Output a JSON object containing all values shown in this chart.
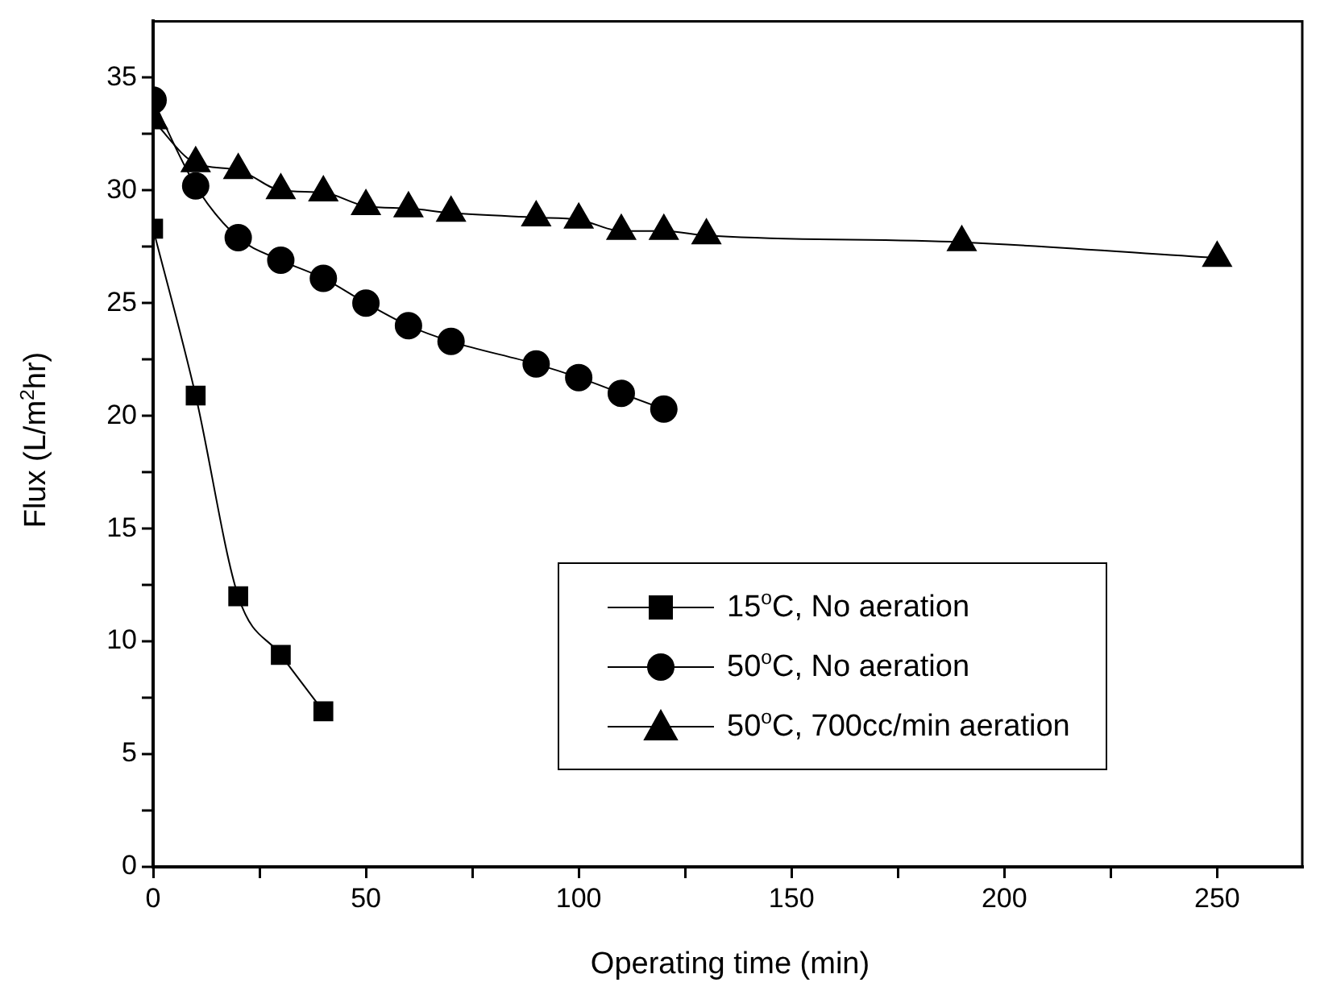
{
  "chart_data": {
    "type": "line",
    "xlabel": "Operating time (min)",
    "ylabel": "Flux (L/m$^{2}$hr)",
    "xlim": [
      0,
      270
    ],
    "xticks": [
      0,
      {
        "value": 25,
        "label": null
      },
      50,
      {
        "value": 75,
        "label": null
      },
      100,
      {
        "value": 125,
        "label": null
      },
      150,
      {
        "value": 175,
        "label": null
      },
      200,
      {
        "value": 225,
        "label": null
      },
      250
    ],
    "ylim": [
      0,
      37.5
    ],
    "yticks": [
      0,
      {
        "value": 2.5,
        "label": null
      },
      5,
      {
        "value": 7.5,
        "label": null
      },
      10,
      {
        "value": 12.5,
        "label": null
      },
      15,
      {
        "value": 17.5,
        "label": null
      },
      20,
      {
        "value": 22.5,
        "label": null
      },
      25,
      {
        "value": 27.5,
        "label": null
      },
      30,
      {
        "value": 32.5,
        "label": null
      },
      35
    ],
    "grid": false,
    "legend": "bottom right",
    "line_style": "solid",
    "series": [
      {
        "name": "15$^{o}$C, No aeration",
        "color": "#000000",
        "marker": "square",
        "x": [
          0,
          10,
          20,
          30,
          40
        ],
        "values": [
          28.3,
          20.9,
          12,
          9.4,
          6.9
        ]
      },
      {
        "name": "50$^{o}$C, No aeration",
        "color": "#000000",
        "marker": "circle",
        "x": [
          0,
          10,
          20,
          30,
          40,
          50,
          60,
          70,
          90,
          100,
          110,
          120
        ],
        "values": [
          34,
          30.2,
          27.9,
          26.9,
          26.1,
          25,
          24,
          23.3,
          22.3,
          21.7,
          21,
          20.3
        ]
      },
      {
        "name": "50$^{o}$C, 700cc/min aeration",
        "color": "#000000",
        "marker": "triangle",
        "x": [
          0,
          10,
          20,
          30,
          40,
          50,
          60,
          70,
          90,
          100,
          110,
          120,
          130,
          190,
          250
        ],
        "values": [
          33.1,
          31.2,
          30.9,
          30,
          29.9,
          29.3,
          29.2,
          29,
          28.8,
          28.7,
          28.2,
          28.2,
          28,
          27.7,
          27
        ]
      }
    ]
  }
}
